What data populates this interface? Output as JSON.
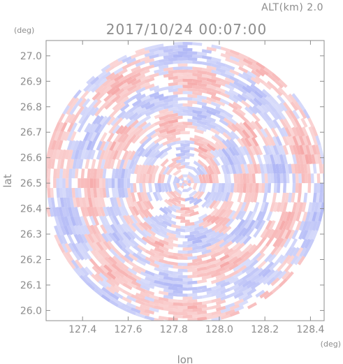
{
  "chart_data": {
    "type": "heatmap",
    "title": "2017/10/24 00:07:00",
    "subtitle": "ALT(km) 2.0",
    "xlabel": "lon",
    "ylabel": "lat",
    "xunit": "(deg)",
    "yunit": "(deg)",
    "xlim": [
      127.24,
      128.46
    ],
    "ylim": [
      25.96,
      27.06
    ],
    "xticks": [
      127.4,
      127.6,
      127.8,
      128.0,
      128.2,
      128.4
    ],
    "xtick_labels": [
      "127.4",
      "127.6",
      "127.8",
      "128.0",
      "128.2",
      "128.4"
    ],
    "yticks": [
      26.0,
      26.1,
      26.2,
      26.3,
      26.4,
      26.5,
      26.6,
      26.7,
      26.8,
      26.9,
      27.0
    ],
    "ytick_labels": [
      "26.0",
      "26.1",
      "26.2",
      "26.3",
      "26.4",
      "26.5",
      "26.6",
      "26.7",
      "26.8",
      "26.9",
      "27.0"
    ],
    "radar_center": {
      "lon": 127.85,
      "lat": 26.5
    },
    "radar_radius_deg_lon": 0.62,
    "grid": false,
    "colors": {
      "positive": "#f5a0a0",
      "negative": "#a8b0f5",
      "axis": "#8c8c8c"
    }
  }
}
